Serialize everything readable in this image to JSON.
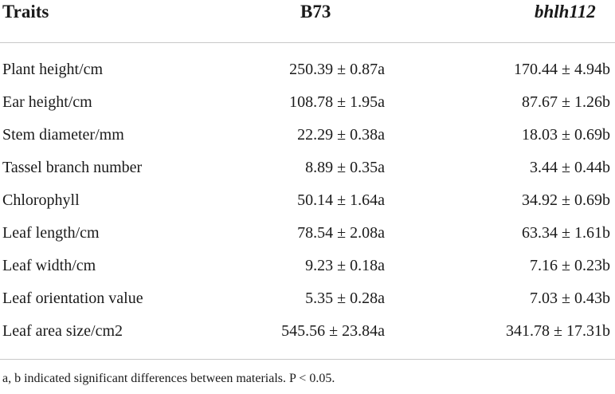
{
  "table": {
    "headers": {
      "traits": "Traits",
      "b73": "B73",
      "bhlh112": "bhlh112"
    },
    "rows": [
      {
        "trait": "Plant height/cm",
        "b73": "250.39 ± 0.87a",
        "bhlh112": "170.44 ± 4.94b"
      },
      {
        "trait": "Ear height/cm",
        "b73": "108.78 ± 1.95a",
        "bhlh112": "87.67 ± 1.26b"
      },
      {
        "trait": "Stem diameter/mm",
        "b73": "22.29 ± 0.38a",
        "bhlh112": "18.03 ± 0.69b"
      },
      {
        "trait": "Tassel branch number",
        "b73": "8.89 ± 0.35a",
        "bhlh112": "3.44 ± 0.44b"
      },
      {
        "trait": "Chlorophyll",
        "b73": "50.14 ± 1.64a",
        "bhlh112": "34.92 ± 0.69b"
      },
      {
        "trait": "Leaf length/cm",
        "b73": "78.54 ± 2.08a",
        "bhlh112": "63.34 ± 1.61b"
      },
      {
        "trait": "Leaf width/cm",
        "b73": "9.23 ± 0.18a",
        "bhlh112": "7.16 ± 0.23b"
      },
      {
        "trait": "Leaf orientation value",
        "b73": "5.35 ± 0.28a",
        "bhlh112": "7.03 ± 0.43b"
      },
      {
        "trait": "Leaf area size/cm2",
        "b73": "545.56 ± 23.84a",
        "bhlh112": "341.78 ± 17.31b"
      }
    ],
    "footnote": "a, b indicated significant differences between materials. P < 0.05."
  }
}
